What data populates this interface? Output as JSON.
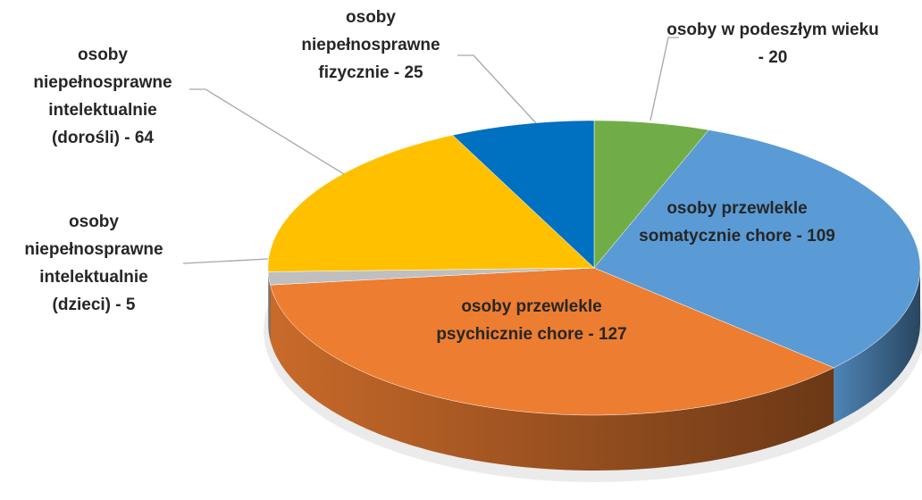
{
  "chart_data": {
    "type": "pie",
    "categories": [
      "osoby w podeszłym wieku - 20",
      "osoby przewlekle somatycznie chore - 109",
      "osoby przewlekle psychicznie chore - 127",
      "osoby niepełnosprawne intelektualnie (dzieci) - 5",
      "osoby niepełnosprawne intelektualnie (dorośli) - 64",
      "osoby niepełnosprawne fizycznie - 25"
    ],
    "values": [
      20,
      109,
      127,
      5,
      64,
      25
    ],
    "colors": [
      "#70ad47",
      "#5b9bd5",
      "#ed7d31",
      "#bfbfbf",
      "#ffc000",
      "#0070c0"
    ]
  }
}
